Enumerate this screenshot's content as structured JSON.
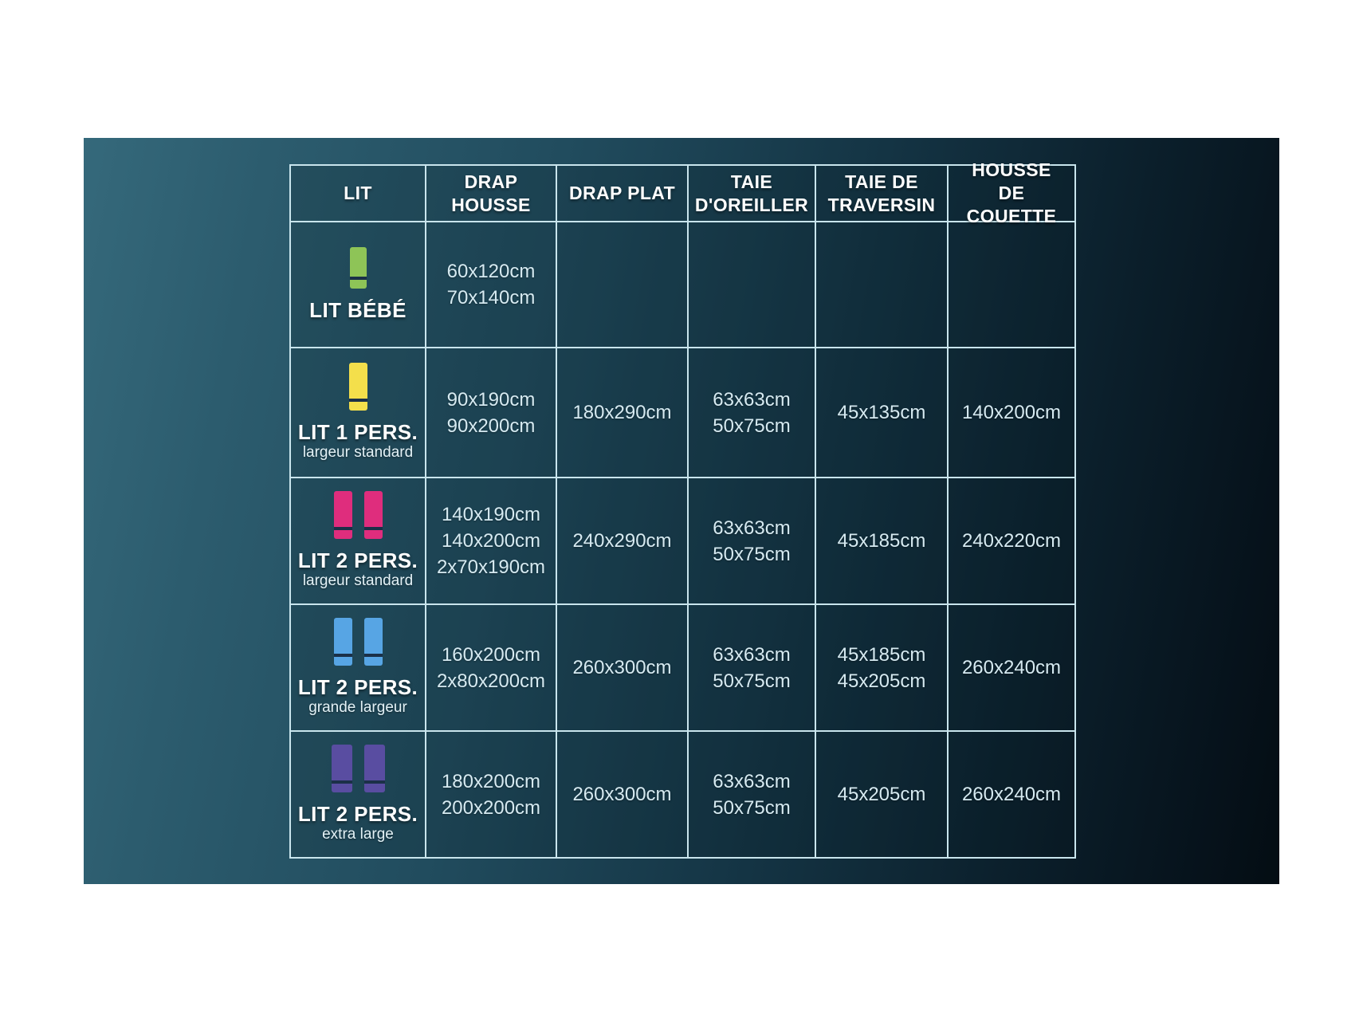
{
  "background": {
    "page_color": "#ffffff",
    "panel_gradient_left": "#35697b",
    "panel_gradient_right": "#040d13",
    "grid_line_color": "#c9e5ed"
  },
  "icons": {
    "stripe_color": "#1b3048"
  },
  "chart_data": {
    "type": "table",
    "columns": [
      "LIT",
      "DRAP HOUSSE",
      "DRAP PLAT",
      "TAIE D'OREILLER",
      "TAIE DE TRAVERSIN",
      "HOUSSE DE COUETTE"
    ],
    "rows": [
      {
        "label": "LIT BÉBÉ",
        "sublabel": "",
        "bed_icon": {
          "color": "#8ec457",
          "count": 1,
          "name": "crib-bed-icon"
        },
        "drap_housse": [
          "60x120cm",
          "70x140cm"
        ],
        "drap_plat": [],
        "taie_oreiller": [],
        "taie_traversin": [],
        "housse_couette": []
      },
      {
        "label": "LIT 1 PERS.",
        "sublabel": "largeur standard",
        "bed_icon": {
          "color": "#f4df4b",
          "count": 1,
          "name": "single-bed-icon"
        },
        "drap_housse": [
          "90x190cm",
          "90x200cm"
        ],
        "drap_plat": [
          "180x290cm"
        ],
        "taie_oreiller": [
          "63x63cm",
          "50x75cm"
        ],
        "taie_traversin": [
          "45x135cm"
        ],
        "housse_couette": [
          "140x200cm"
        ]
      },
      {
        "label": "LIT 2 PERS.",
        "sublabel": "largeur standard",
        "bed_icon": {
          "color": "#df2d7d",
          "count": 2,
          "name": "double-bed-icon"
        },
        "drap_housse": [
          "140x190cm",
          "140x200cm",
          "2x70x190cm"
        ],
        "drap_plat": [
          "240x290cm"
        ],
        "taie_oreiller": [
          "63x63cm",
          "50x75cm"
        ],
        "taie_traversin": [
          "45x185cm"
        ],
        "housse_couette": [
          "240x220cm"
        ]
      },
      {
        "label": "LIT 2 PERS.",
        "sublabel": "grande largeur",
        "bed_icon": {
          "color": "#57a5e4",
          "count": 2,
          "name": "queen-bed-icon"
        },
        "drap_housse": [
          "160x200cm",
          "2x80x200cm"
        ],
        "drap_plat": [
          "260x300cm"
        ],
        "taie_oreiller": [
          "63x63cm",
          "50x75cm"
        ],
        "taie_traversin": [
          "45x185cm",
          "45x205cm"
        ],
        "housse_couette": [
          "260x240cm"
        ]
      },
      {
        "label": "LIT 2 PERS.",
        "sublabel": "extra large",
        "bed_icon": {
          "color": "#594da1",
          "count": 2,
          "name": "king-bed-icon"
        },
        "drap_housse": [
          "180x200cm",
          "200x200cm"
        ],
        "drap_plat": [
          "260x300cm"
        ],
        "taie_oreiller": [
          "63x63cm",
          "50x75cm"
        ],
        "taie_traversin": [
          "45x205cm"
        ],
        "housse_couette": [
          "260x240cm"
        ]
      }
    ]
  }
}
